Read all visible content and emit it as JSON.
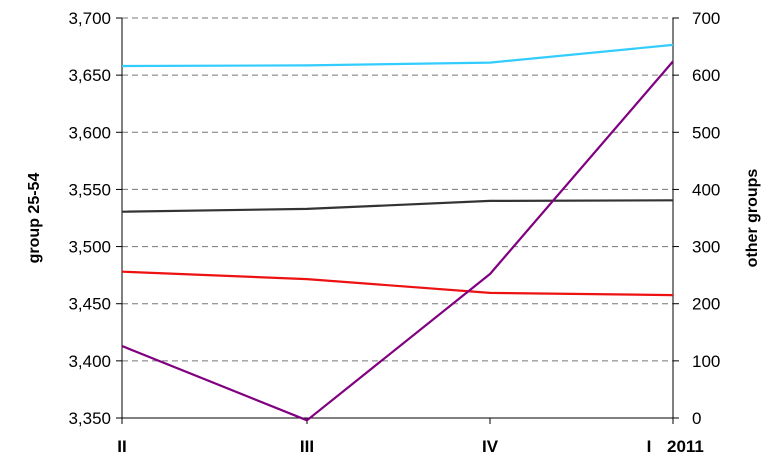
{
  "chart_data": {
    "type": "line",
    "categories": [
      "II",
      "III",
      "IV",
      "I"
    ],
    "category_suffix": "2011",
    "y_left": {
      "label": "group 25-54",
      "ylim": [
        3350,
        3700
      ],
      "ticks": [
        3350,
        3400,
        3450,
        3500,
        3550,
        3600,
        3650,
        3700
      ],
      "tick_labels": [
        "3,350",
        "3,400",
        "3,450",
        "3,500",
        "3,550",
        "3,600",
        "3,650",
        "3,700"
      ]
    },
    "y_right": {
      "label": "other groups",
      "ylim": [
        0,
        700
      ],
      "ticks": [
        0,
        100,
        200,
        300,
        400,
        500,
        600,
        700
      ],
      "tick_labels": [
        "0",
        "100",
        "200",
        "300",
        "400",
        "500",
        "600",
        "700"
      ]
    },
    "grid": "horizontal dashed",
    "series": [
      {
        "axis": "right",
        "color": "#33ccff",
        "values": [
          616,
          617,
          622,
          653
        ]
      },
      {
        "axis": "right",
        "color": "#333333",
        "values": [
          361,
          366,
          380,
          381
        ]
      },
      {
        "axis": "right",
        "color": "#ee1111",
        "values": [
          256,
          243,
          219,
          215
        ]
      },
      {
        "axis": "left",
        "color": "#800080",
        "values": [
          3413,
          3348,
          3476,
          3662
        ]
      }
    ]
  }
}
